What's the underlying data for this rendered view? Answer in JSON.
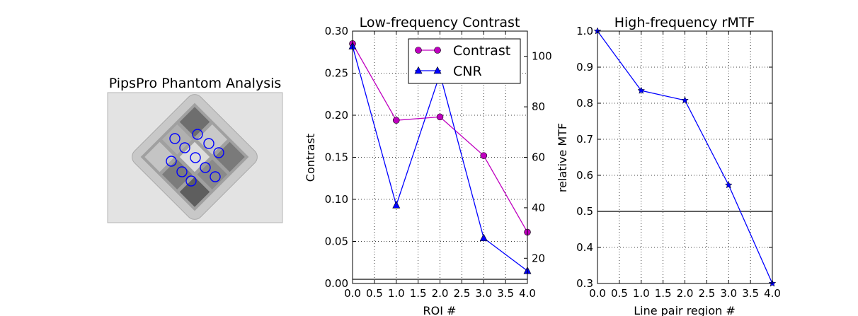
{
  "phantom": {
    "title": "PipsPro Phantom Analysis"
  },
  "chart_data": [
    {
      "type": "line",
      "title": "Low-frequency Contrast",
      "xlabel": "ROI #",
      "ylabel": "Contrast",
      "x": [
        0,
        1,
        2,
        3,
        4
      ],
      "xlim": [
        0,
        4
      ],
      "ylim": [
        0,
        0.3
      ],
      "y2lim": [
        10,
        110
      ],
      "x_ticks": [
        "0.0",
        "0.5",
        "1.0",
        "1.5",
        "2.0",
        "2.5",
        "3.0",
        "3.5",
        "4.0"
      ],
      "y_ticks": [
        "0.00",
        "0.05",
        "0.10",
        "0.15",
        "0.20",
        "0.25",
        "0.30"
      ],
      "y2_ticks": [
        "20",
        "40",
        "60",
        "80",
        "100"
      ],
      "grid": true,
      "legend_position": "top-right",
      "series": [
        {
          "name": "Contrast",
          "axis": "left",
          "color": "#bf00bf",
          "marker": "circle",
          "values": [
            0.285,
            0.194,
            0.198,
            0.152,
            0.061
          ]
        },
        {
          "name": "CNR",
          "axis": "right",
          "color": "#0000ff",
          "marker": "triangle",
          "values": [
            104,
            41,
            93,
            28,
            15
          ]
        }
      ],
      "hline": 0.005
    },
    {
      "type": "line",
      "title": "High-frequency rMTF",
      "xlabel": "Line pair region #",
      "ylabel": "relative MTF",
      "x": [
        0,
        1,
        2,
        3,
        4
      ],
      "xlim": [
        0,
        4
      ],
      "ylim": [
        0.3,
        1.0
      ],
      "x_ticks": [
        "0.0",
        "0.5",
        "1.0",
        "1.5",
        "2.0",
        "2.5",
        "3.0",
        "3.5",
        "4.0"
      ],
      "y_ticks": [
        "0.3",
        "0.4",
        "0.5",
        "0.6",
        "0.7",
        "0.8",
        "0.9",
        "1.0"
      ],
      "grid": true,
      "series": [
        {
          "color": "#0000ff",
          "marker": "star",
          "values": [
            1.0,
            0.835,
            0.808,
            0.573,
            0.3
          ]
        }
      ],
      "hline": 0.5
    }
  ]
}
